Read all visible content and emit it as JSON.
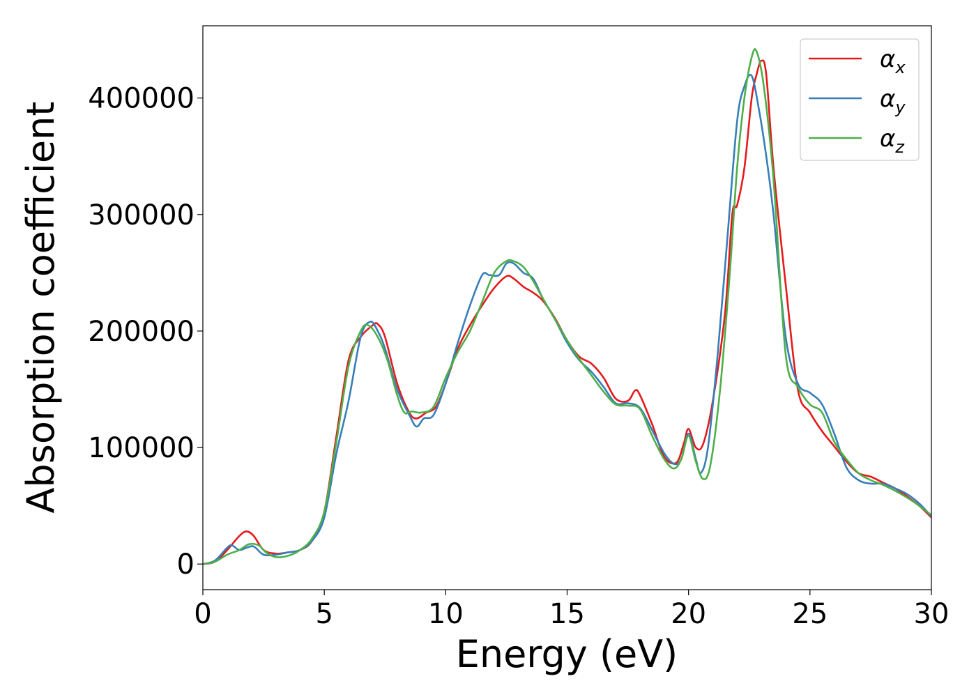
{
  "chart_data": {
    "type": "line",
    "xlabel": "Energy (eV)",
    "ylabel": "Absorption coefficient",
    "xlim": [
      0,
      30
    ],
    "ylim": [
      -22000,
      462000
    ],
    "xticks": [
      0,
      5,
      10,
      15,
      20,
      25,
      30
    ],
    "yticks": [
      0,
      100000,
      200000,
      300000,
      400000
    ],
    "grid": false,
    "legend_position": "top-right",
    "series": [
      {
        "name": "α",
        "subscript": "x",
        "color": "#e41a1c",
        "x": [
          0,
          0.5,
          1.0,
          1.5,
          1.8,
          2.1,
          2.5,
          3.0,
          3.5,
          4.0,
          4.5,
          5.0,
          5.5,
          6.0,
          6.5,
          7.0,
          7.2,
          7.5,
          8.0,
          8.5,
          8.8,
          9.2,
          9.6,
          10.0,
          10.5,
          11.0,
          11.5,
          12.0,
          12.5,
          12.8,
          13.2,
          13.6,
          14.0,
          14.5,
          15.0,
          15.5,
          16.0,
          16.5,
          17.0,
          17.5,
          17.8,
          18.0,
          18.5,
          19.0,
          19.5,
          19.8,
          20.0,
          20.3,
          20.6,
          21.0,
          21.5,
          21.8,
          22.0,
          22.3,
          22.6,
          22.8,
          23.0,
          23.2,
          23.5,
          24.0,
          24.5,
          25.0,
          25.5,
          26.0,
          26.5,
          27.0,
          27.5,
          28.0,
          28.5,
          29.0,
          29.5,
          30.0
        ],
        "y": [
          0,
          2000,
          12000,
          24000,
          28000,
          24000,
          12000,
          9000,
          10000,
          12000,
          20000,
          45000,
          110000,
          175000,
          195000,
          205000,
          206000,
          195000,
          155000,
          130000,
          125000,
          130000,
          135000,
          155000,
          185000,
          205000,
          222000,
          237000,
          247000,
          245000,
          238000,
          233000,
          226000,
          211000,
          192000,
          178000,
          172000,
          160000,
          142000,
          140000,
          149000,
          145000,
          120000,
          92000,
          87000,
          103000,
          116000,
          100000,
          103000,
          140000,
          215000,
          300000,
          308000,
          340000,
          400000,
          420000,
          432000,
          420000,
          340000,
          240000,
          150000,
          130000,
          114000,
          101000,
          88000,
          78000,
          75000,
          70000,
          65000,
          58000,
          50000,
          40000
        ]
      },
      {
        "name": "α",
        "subscript": "y",
        "color": "#377eb8",
        "x": [
          0,
          0.5,
          1.0,
          1.2,
          1.5,
          1.8,
          2.1,
          2.5,
          3.0,
          3.5,
          4.0,
          4.5,
          5.0,
          5.5,
          6.0,
          6.5,
          6.9,
          7.2,
          7.5,
          8.0,
          8.5,
          8.8,
          9.1,
          9.5,
          10.0,
          10.5,
          11.0,
          11.5,
          11.8,
          12.2,
          12.5,
          12.8,
          13.2,
          13.6,
          14.0,
          14.5,
          15.0,
          15.5,
          16.0,
          16.5,
          17.0,
          17.5,
          18.0,
          18.5,
          19.0,
          19.4,
          19.7,
          20.0,
          20.3,
          20.5,
          20.8,
          21.2,
          21.6,
          22.0,
          22.3,
          22.6,
          22.9,
          23.2,
          23.5,
          24.0,
          24.5,
          25.0,
          25.5,
          26.0,
          26.5,
          27.0,
          27.5,
          28.0,
          28.5,
          29.0,
          29.5,
          30.0
        ],
        "y": [
          0,
          3000,
          14000,
          16000,
          12000,
          14000,
          15000,
          8000,
          8000,
          10000,
          12000,
          20000,
          40000,
          95000,
          140000,
          195000,
          208000,
          200000,
          185000,
          150000,
          128000,
          118000,
          125000,
          128000,
          155000,
          190000,
          222000,
          248000,
          248000,
          248000,
          258000,
          258000,
          250000,
          245000,
          228000,
          210000,
          190000,
          175000,
          165000,
          152000,
          138000,
          138000,
          134000,
          115000,
          95000,
          86000,
          90000,
          112000,
          90000,
          78000,
          100000,
          180000,
          280000,
          380000,
          410000,
          419000,
          390000,
          350000,
          300000,
          195000,
          155000,
          147000,
          137000,
          112000,
          83000,
          72000,
          69000,
          69000,
          65000,
          60000,
          52000,
          41000
        ]
      },
      {
        "name": "α",
        "subscript": "z",
        "color": "#4daf4a",
        "x": [
          0,
          0.5,
          1.0,
          1.5,
          1.9,
          2.3,
          2.6,
          3.0,
          3.5,
          4.0,
          4.5,
          5.0,
          5.5,
          6.0,
          6.5,
          6.8,
          7.2,
          7.6,
          8.0,
          8.3,
          8.6,
          9.0,
          9.5,
          10.0,
          10.5,
          11.0,
          11.5,
          12.0,
          12.5,
          12.8,
          13.2,
          13.6,
          14.0,
          14.5,
          15.0,
          15.5,
          16.0,
          16.5,
          17.0,
          17.5,
          18.0,
          18.5,
          19.0,
          19.4,
          19.7,
          20.0,
          20.3,
          20.6,
          20.9,
          21.3,
          21.7,
          22.0,
          22.3,
          22.6,
          22.8,
          23.1,
          23.5,
          24.0,
          24.5,
          25.0,
          25.5,
          26.0,
          26.5,
          27.0,
          27.5,
          28.0,
          28.5,
          29.0,
          29.5,
          30.0
        ],
        "y": [
          0,
          2000,
          8000,
          12000,
          17000,
          16000,
          10000,
          6000,
          7000,
          12000,
          22000,
          45000,
          105000,
          170000,
          200000,
          205000,
          195000,
          175000,
          145000,
          130000,
          131000,
          130000,
          135000,
          160000,
          182000,
          200000,
          225000,
          250000,
          260000,
          260000,
          255000,
          243000,
          228000,
          210000,
          192000,
          176000,
          162000,
          148000,
          137000,
          136000,
          133000,
          110000,
          90000,
          82000,
          90000,
          110000,
          88000,
          73000,
          85000,
          150000,
          250000,
          340000,
          400000,
          435000,
          440000,
          410000,
          330000,
          180000,
          152000,
          137000,
          130000,
          105000,
          90000,
          78000,
          72000,
          68000,
          63000,
          57000,
          50000,
          42000
        ]
      }
    ]
  }
}
